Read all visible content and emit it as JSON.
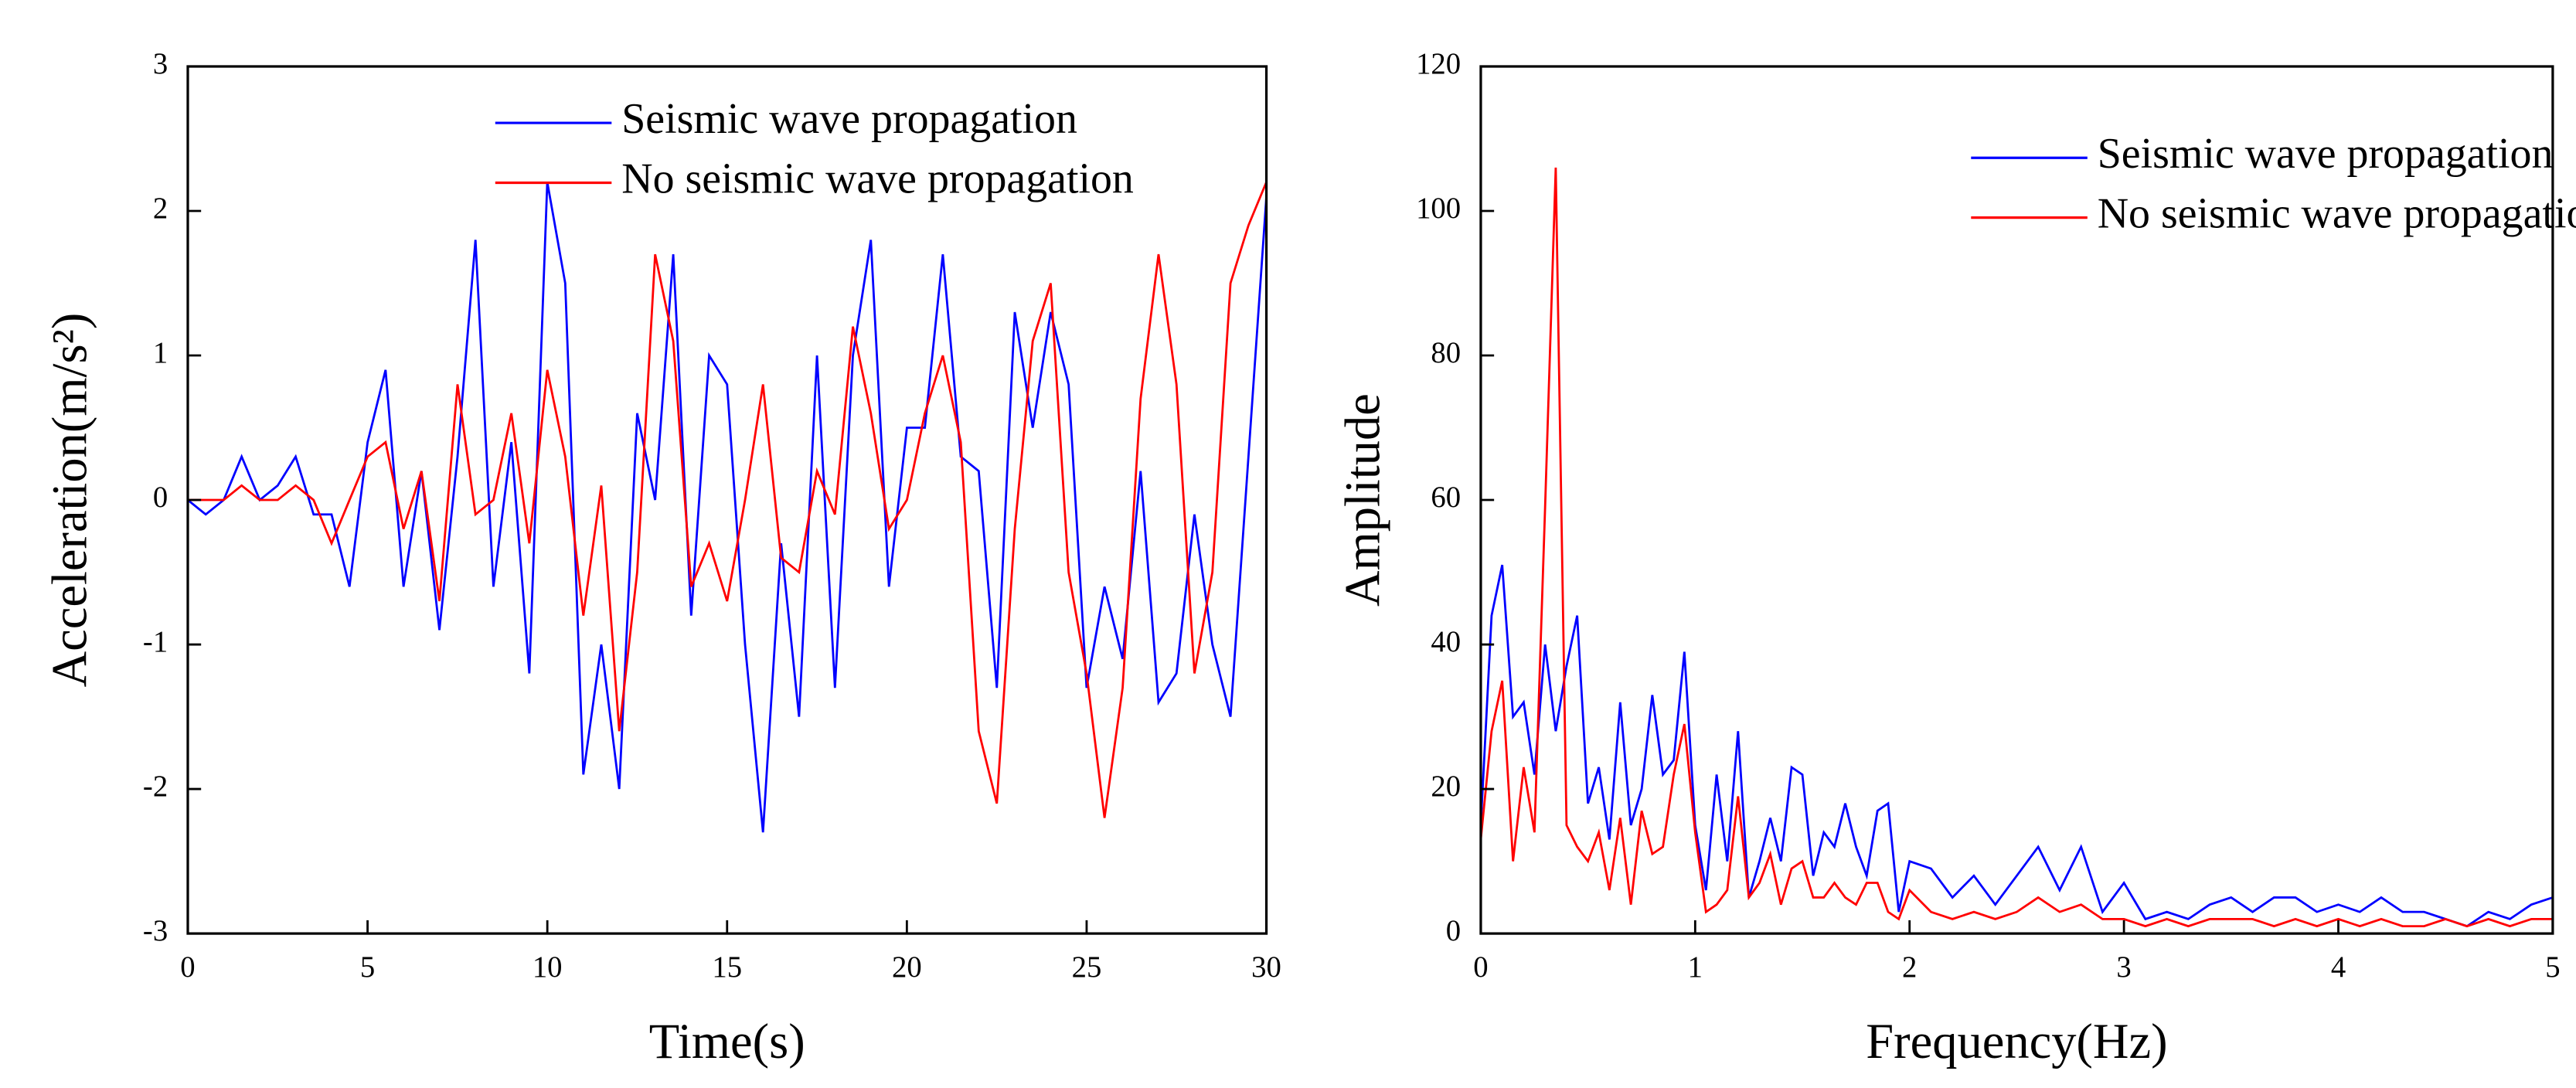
{
  "chart_data": [
    {
      "type": "line",
      "xlabel": "Time(s)",
      "ylabel": "Acceleration(m/s²)",
      "x": [
        0,
        0.5,
        1,
        1.5,
        2,
        2.5,
        3,
        3.5,
        4,
        4.5,
        5,
        5.5,
        6,
        6.5,
        7,
        7.5,
        8,
        8.5,
        9,
        9.5,
        10,
        10.5,
        11,
        11.5,
        12,
        12.5,
        13,
        13.5,
        14,
        14.5,
        15,
        15.5,
        16,
        16.5,
        17,
        17.5,
        18,
        18.5,
        19,
        19.5,
        20,
        20.5,
        21,
        21.5,
        22,
        22.5,
        23,
        23.5,
        24,
        24.5,
        25,
        25.5,
        26,
        26.5,
        27,
        27.5,
        28,
        28.5,
        29,
        29.5,
        30
      ],
      "series": [
        {
          "name": "Seismic wave propagation",
          "color": "#0000ff",
          "values": [
            0,
            -0.1,
            0,
            0.3,
            0,
            0.1,
            0.3,
            -0.1,
            -0.1,
            -0.6,
            0.4,
            0.9,
            -0.6,
            0.2,
            -0.9,
            0.3,
            1.8,
            -0.6,
            0.4,
            -1.2,
            2.2,
            1.5,
            -1.9,
            -1.0,
            -2.0,
            0.6,
            0.0,
            1.7,
            -0.8,
            1.0,
            0.8,
            -1.0,
            -2.3,
            -0.3,
            -1.5,
            1.0,
            -1.3,
            1.0,
            1.8,
            -0.6,
            0.5,
            0.5,
            1.7,
            0.3,
            0.2,
            -1.3,
            1.3,
            0.5,
            1.3,
            0.8,
            -1.3,
            -0.6,
            -1.1,
            0.2,
            -1.4,
            -1.2,
            -0.1,
            -1.0,
            -1.5,
            0.3,
            2.1
          ]
        },
        {
          "name": "No seismic wave propagation",
          "color": "#ff0000",
          "values": [
            0,
            0,
            0,
            0.1,
            0,
            0,
            0.1,
            0,
            -0.3,
            0,
            0.3,
            0.4,
            -0.2,
            0.2,
            -0.7,
            0.8,
            -0.1,
            0,
            0.6,
            -0.3,
            0.9,
            0.3,
            -0.8,
            0.1,
            -1.6,
            -0.5,
            1.7,
            1.1,
            -0.6,
            -0.3,
            -0.7,
            0.0,
            0.8,
            -0.4,
            -0.5,
            0.2,
            -0.1,
            1.2,
            0.6,
            -0.2,
            0.0,
            0.6,
            1.0,
            0.4,
            -1.6,
            -2.1,
            -0.2,
            1.1,
            1.5,
            -0.5,
            -1.2,
            -2.2,
            -1.3,
            0.7,
            1.7,
            0.8,
            -1.2,
            -0.5,
            1.5,
            1.9,
            2.2
          ]
        }
      ],
      "xlim": [
        0,
        30
      ],
      "xticks": [
        0,
        5,
        10,
        15,
        20,
        25,
        30
      ],
      "ylim": [
        -3,
        3
      ],
      "yticks": [
        -3,
        -2,
        -1,
        0,
        1,
        2,
        3
      ],
      "legend": "upper center"
    },
    {
      "type": "line",
      "xlabel": "Frequency(Hz)",
      "ylabel": "Amplitude",
      "x": [
        0,
        0.05,
        0.1,
        0.15,
        0.2,
        0.25,
        0.3,
        0.35,
        0.4,
        0.45,
        0.5,
        0.55,
        0.6,
        0.65,
        0.7,
        0.75,
        0.8,
        0.85,
        0.9,
        0.95,
        1,
        1.05,
        1.1,
        1.15,
        1.2,
        1.25,
        1.3,
        1.35,
        1.4,
        1.45,
        1.5,
        1.55,
        1.6,
        1.65,
        1.7,
        1.75,
        1.8,
        1.85,
        1.9,
        1.95,
        2,
        2.1,
        2.2,
        2.3,
        2.4,
        2.5,
        2.6,
        2.7,
        2.8,
        2.9,
        3,
        3.1,
        3.2,
        3.3,
        3.4,
        3.5,
        3.6,
        3.7,
        3.8,
        3.9,
        4,
        4.1,
        4.2,
        4.3,
        4.4,
        4.5,
        4.6,
        4.7,
        4.8,
        4.9,
        5
      ],
      "series": [
        {
          "name": "Seismic wave propagation",
          "color": "#0000ff",
          "values": [
            15,
            44,
            51,
            30,
            32,
            22,
            40,
            28,
            37,
            44,
            18,
            23,
            13,
            32,
            15,
            20,
            33,
            22,
            24,
            39,
            15,
            6,
            22,
            10,
            28,
            5,
            10,
            16,
            10,
            23,
            22,
            8,
            14,
            12,
            18,
            12,
            8,
            17,
            18,
            3,
            10,
            9,
            5,
            8,
            4,
            8,
            12,
            6,
            12,
            3,
            7,
            2,
            3,
            2,
            4,
            5,
            3,
            5,
            5,
            3,
            4,
            3,
            5,
            3,
            3,
            2,
            1,
            3,
            2,
            4,
            5
          ]
        },
        {
          "name": "No seismic wave propagation",
          "color": "#ff0000",
          "values": [
            13,
            28,
            35,
            10,
            23,
            14,
            59,
            106,
            15,
            12,
            10,
            14,
            6,
            16,
            4,
            17,
            11,
            12,
            22,
            29,
            14,
            3,
            4,
            6,
            19,
            5,
            7,
            11,
            4,
            9,
            10,
            5,
            5,
            7,
            5,
            4,
            7,
            7,
            3,
            2,
            6,
            3,
            2,
            3,
            2,
            3,
            5,
            3,
            4,
            2,
            2,
            1,
            2,
            1,
            2,
            2,
            2,
            1,
            2,
            1,
            2,
            1,
            2,
            1,
            1,
            2,
            1,
            2,
            1,
            2,
            2
          ]
        }
      ],
      "xlim": [
        0,
        5
      ],
      "xticks": [
        0,
        1,
        2,
        3,
        4,
        5
      ],
      "ylim": [
        0,
        120
      ],
      "yticks": [
        0,
        20,
        40,
        60,
        80,
        100,
        120
      ],
      "legend": "upper right"
    }
  ]
}
